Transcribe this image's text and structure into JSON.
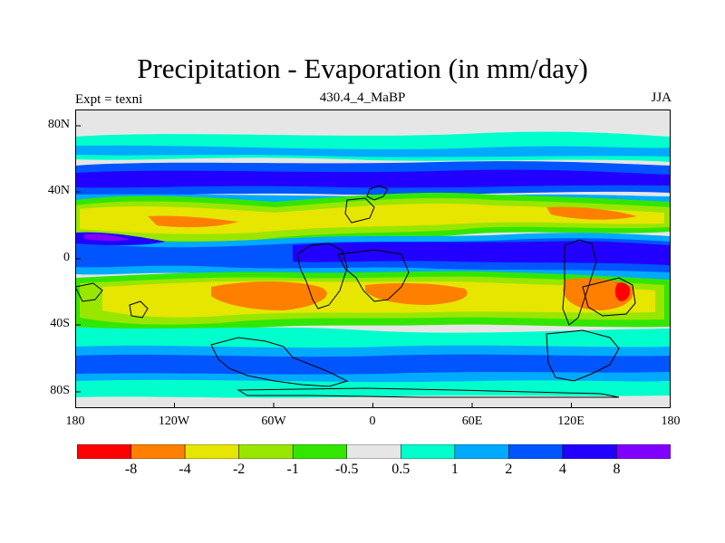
{
  "title": "Precipitation - Evaporation (in mm/day)",
  "left_label": "Expt = texni",
  "center_label": "430.4_4_MaBP",
  "right_label": "JJA",
  "lat_labels": [
    "80N",
    "40N",
    "0",
    "40S",
    "80S"
  ],
  "lon_labels": [
    "180",
    "120W",
    "60W",
    "0",
    "60E",
    "120E",
    "180"
  ],
  "colorbar": {
    "colors": [
      "#ff0000",
      "#ff8000",
      "#e6e600",
      "#99e600",
      "#33e600",
      "#e6e6e6",
      "#00ffcc",
      "#00aaff",
      "#0055ff",
      "#2200ff",
      "#8000ff"
    ],
    "labels": [
      "-8",
      "-4",
      "-2",
      "-1",
      "-0.5",
      "0.5",
      "1",
      "2",
      "4",
      "8"
    ]
  },
  "colors": {
    "land_outline": "#000000",
    "background": "#e6e6e6"
  }
}
